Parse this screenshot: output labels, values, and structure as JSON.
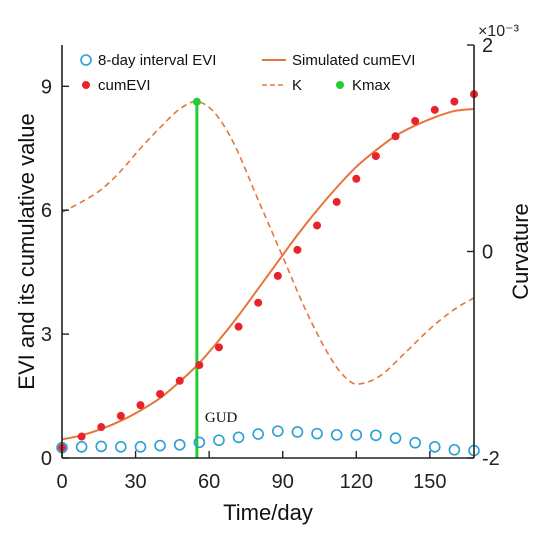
{
  "chart_data": {
    "type": "line",
    "xlabel": "Time/day",
    "ylabel": "EVI and its cumulative value",
    "y2label": "Curvature",
    "x_ticks": [
      0,
      30,
      60,
      90,
      120,
      150
    ],
    "y_ticks": [
      0,
      3,
      6,
      9
    ],
    "y2_ticks": [
      -2,
      0,
      2
    ],
    "y2_tick_labels": [
      "-2",
      "0",
      "2"
    ],
    "y2_multiplier": "×10⁻³",
    "xlim": [
      0,
      168
    ],
    "ylim": [
      0,
      10
    ],
    "y2lim": [
      -2,
      2
    ],
    "legend_position": "top",
    "annotation": "GUD",
    "series": [
      {
        "name": "8-day interval EVI",
        "style": "open-circle",
        "color": "#2a9fd4",
        "axis": "left",
        "x": [
          0,
          8,
          16,
          24,
          32,
          40,
          48,
          56,
          64,
          72,
          80,
          88,
          96,
          104,
          112,
          120,
          128,
          136,
          144,
          152,
          160,
          168
        ],
        "y": [
          0.25,
          0.27,
          0.28,
          0.27,
          0.27,
          0.3,
          0.32,
          0.38,
          0.43,
          0.5,
          0.58,
          0.65,
          0.63,
          0.59,
          0.56,
          0.56,
          0.55,
          0.48,
          0.37,
          0.27,
          0.2,
          0.18
        ]
      },
      {
        "name": "cumEVI",
        "style": "filled-dot",
        "color": "#e8232a",
        "axis": "left",
        "x": [
          0,
          8,
          16,
          24,
          32,
          40,
          48,
          56,
          64,
          72,
          80,
          88,
          96,
          104,
          112,
          120,
          128,
          136,
          144,
          152,
          160,
          168
        ],
        "y": [
          0.25,
          0.52,
          0.75,
          1.02,
          1.28,
          1.55,
          1.87,
          2.25,
          2.68,
          3.18,
          3.76,
          4.41,
          5.04,
          5.63,
          6.2,
          6.76,
          7.31,
          7.79,
          8.16,
          8.43,
          8.63,
          8.81
        ]
      },
      {
        "name": "Simulated cumEVI",
        "style": "solid-line",
        "color": "#e8743b",
        "axis": "left",
        "x": [
          0,
          8,
          16,
          24,
          32,
          40,
          48,
          56,
          64,
          72,
          80,
          88,
          96,
          104,
          112,
          120,
          128,
          136,
          144,
          152,
          160,
          168
        ],
        "y": [
          0.45,
          0.55,
          0.7,
          0.9,
          1.15,
          1.45,
          1.85,
          2.3,
          2.85,
          3.45,
          4.1,
          4.75,
          5.4,
          6.0,
          6.55,
          7.05,
          7.45,
          7.8,
          8.05,
          8.25,
          8.4,
          8.45
        ]
      },
      {
        "name": "K",
        "style": "dashed-line",
        "color": "#e8743b",
        "axis": "right",
        "x": [
          0,
          8,
          16,
          24,
          32,
          40,
          48,
          55,
          62,
          70,
          80,
          90,
          100,
          110,
          117,
          122,
          130,
          140,
          150,
          160,
          168
        ],
        "y": [
          0.38,
          0.48,
          0.6,
          0.78,
          1.0,
          1.2,
          1.38,
          1.45,
          1.35,
          1.05,
          0.5,
          -0.05,
          -0.6,
          -1.05,
          -1.25,
          -1.28,
          -1.2,
          -0.98,
          -0.75,
          -0.56,
          -0.45
        ]
      },
      {
        "name": "Kmax",
        "style": "vertical-line",
        "color": "#22cc33",
        "axis": "right",
        "x": [
          55
        ],
        "y": [
          1.45
        ]
      }
    ]
  }
}
